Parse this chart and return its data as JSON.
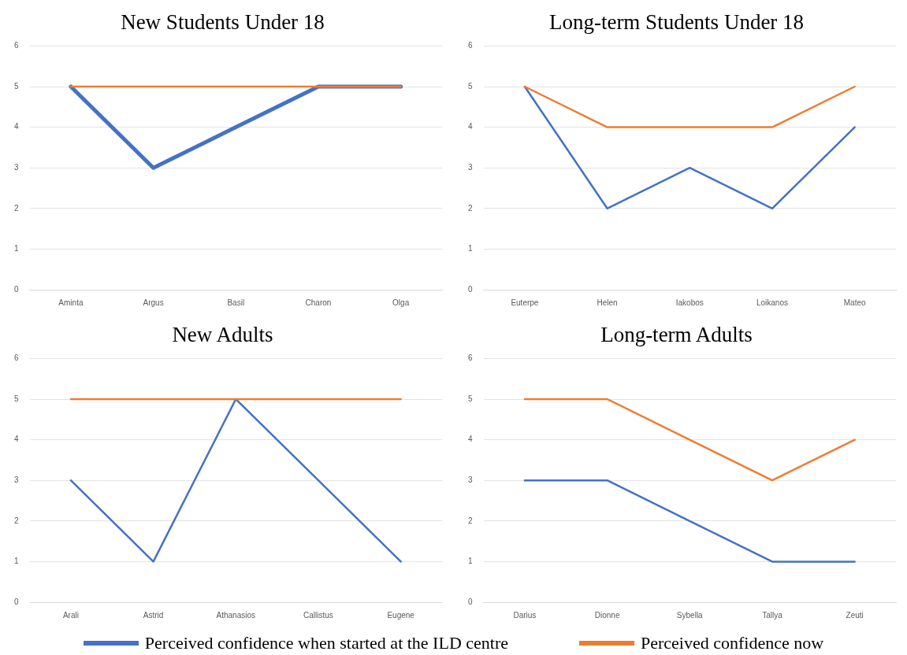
{
  "chart_data": [
    {
      "type": "line",
      "title": "New Students Under 18",
      "categories": [
        "Aminta",
        "Argus",
        "Basil",
        "Charon",
        "Olga"
      ],
      "ylim": [
        0,
        6
      ],
      "yticks": [
        0,
        1,
        2,
        3,
        4,
        5,
        6
      ],
      "grid": "y",
      "legend": "bottom",
      "series": [
        {
          "name": "Perceived confidence when started at the ILD centre",
          "color": "#4472c4",
          "values": [
            5,
            3,
            4,
            5,
            5
          ]
        },
        {
          "name": "Perceived confidence now",
          "color": "#ed7d31",
          "values": [
            5,
            5,
            5,
            5,
            5
          ]
        }
      ]
    },
    {
      "type": "line",
      "title": "Long-term Students Under 18",
      "categories": [
        "Euterpe",
        "Helen",
        "Iakobos",
        "Loikanos",
        "Mateo"
      ],
      "ylim": [
        0,
        6
      ],
      "yticks": [
        0,
        1,
        2,
        3,
        4,
        5,
        6
      ],
      "grid": "y",
      "series": [
        {
          "color": "#4472c4",
          "values": [
            5,
            2,
            3,
            2,
            4
          ]
        },
        {
          "color": "#ed7d31",
          "values": [
            5,
            4,
            4,
            4,
            5
          ]
        }
      ]
    },
    {
      "type": "line",
      "title": "New Adults",
      "categories": [
        "Arali",
        "Astrid",
        "Athanasios",
        "Callistus",
        "Eugene"
      ],
      "ylim": [
        0,
        6
      ],
      "yticks": [
        0,
        1,
        2,
        3,
        4,
        5,
        6
      ],
      "grid": "y",
      "series": [
        {
          "color": "#4472c4",
          "values": [
            3,
            1,
            5,
            3,
            1
          ]
        },
        {
          "color": "#ed7d31",
          "values": [
            5,
            5,
            5,
            5,
            5
          ]
        }
      ]
    },
    {
      "type": "line",
      "title": "Long-term Adults",
      "categories": [
        "Darius",
        "Dionne",
        "Sybella",
        "Tallya",
        "Zeuti"
      ],
      "ylim": [
        0,
        6
      ],
      "yticks": [
        0,
        1,
        2,
        3,
        4,
        5,
        6
      ],
      "grid": "y",
      "series": [
        {
          "color": "#4472c4",
          "values": [
            3,
            3,
            2,
            1,
            1
          ]
        },
        {
          "color": "#ed7d31",
          "values": [
            5,
            5,
            4,
            3,
            4
          ]
        }
      ]
    }
  ]
}
